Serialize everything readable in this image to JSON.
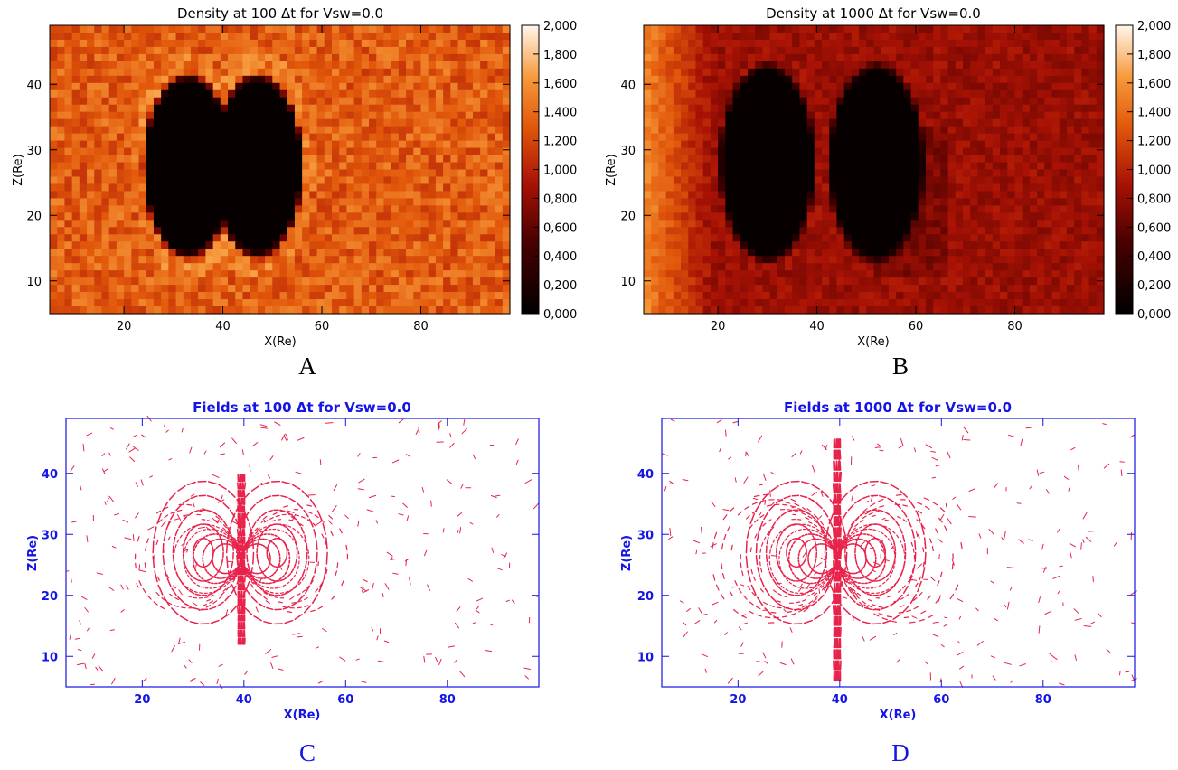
{
  "chart_data": [
    {
      "type": "heatmap",
      "title": "Density at 100 Δt for Vsw=0.0",
      "xlabel": "X(Re)",
      "ylabel": "Z(Re)",
      "x_ticks": [
        20,
        40,
        60,
        80
      ],
      "y_ticks": [
        10,
        20,
        30,
        40
      ],
      "xlim": [
        5,
        98
      ],
      "ylim": [
        5,
        49
      ],
      "colorbar_ticks": [
        "0,000",
        "0,200",
        "0,400",
        "0,600",
        "0,800",
        "1,000",
        "1,200",
        "1,400",
        "1,600",
        "1,800",
        "2,000"
      ],
      "colorbar_range": [
        0,
        2
      ],
      "colormap": "red-temperature",
      "cavity": {
        "lobe_centers_x": [
          33,
          47
        ],
        "center_z": 27.5,
        "radius_x": 8.5,
        "radius_z": 13,
        "value": 0.0
      },
      "background_density": 1.3,
      "panel_label": "A"
    },
    {
      "type": "heatmap",
      "title": "Density at 1000 Δt for Vsw=0.0",
      "xlabel": "X(Re)",
      "ylabel": "Z(Re)",
      "x_ticks": [
        20,
        40,
        60,
        80
      ],
      "y_ticks": [
        10,
        20,
        30,
        40
      ],
      "xlim": [
        5,
        98
      ],
      "ylim": [
        5,
        49
      ],
      "colorbar_ticks": [
        "0,000",
        "0,200",
        "0,400",
        "0,600",
        "0,800",
        "1,000",
        "1,200",
        "1,400",
        "1,600",
        "1,800",
        "2,000"
      ],
      "colorbar_range": [
        0,
        2
      ],
      "colormap": "red-temperature",
      "cavity": {
        "lobe_centers_x": [
          30,
          52
        ],
        "center_z": 28,
        "radius_x": 9,
        "radius_z": 14,
        "value": 0.0
      },
      "background_density": 0.7,
      "panel_label": "B"
    },
    {
      "type": "scatter",
      "subtype": "field-lines",
      "title": "Fields at 100 Δt for Vsw=0.0",
      "xlabel": "X(Re)",
      "ylabel": "Z(Re)",
      "x_ticks": [
        20,
        40,
        60,
        80
      ],
      "y_ticks": [
        10,
        20,
        30,
        40
      ],
      "xlim": [
        5,
        98
      ],
      "ylim": [
        5,
        49
      ],
      "dipole_center": [
        39.5,
        26
      ],
      "loop_centers": [
        [
          32,
          27
        ],
        [
          46.5,
          27
        ]
      ],
      "line_color": "#e8234b",
      "axis_color": "#1414e6",
      "panel_label": "C"
    },
    {
      "type": "scatter",
      "subtype": "field-lines",
      "title": "Fields at 1000 Δt for Vsw=0.0",
      "xlabel": "X(Re)",
      "ylabel": "Z(Re)",
      "x_ticks": [
        20,
        40,
        60,
        80
      ],
      "y_ticks": [
        10,
        20,
        30,
        40
      ],
      "xlim": [
        5,
        98
      ],
      "ylim": [
        5,
        49
      ],
      "dipole_center": [
        39.5,
        26
      ],
      "loop_centers": [
        [
          31.5,
          27
        ],
        [
          47,
          27
        ]
      ],
      "line_color": "#e8234b",
      "axis_color": "#1414e6",
      "panel_label": "D"
    }
  ]
}
